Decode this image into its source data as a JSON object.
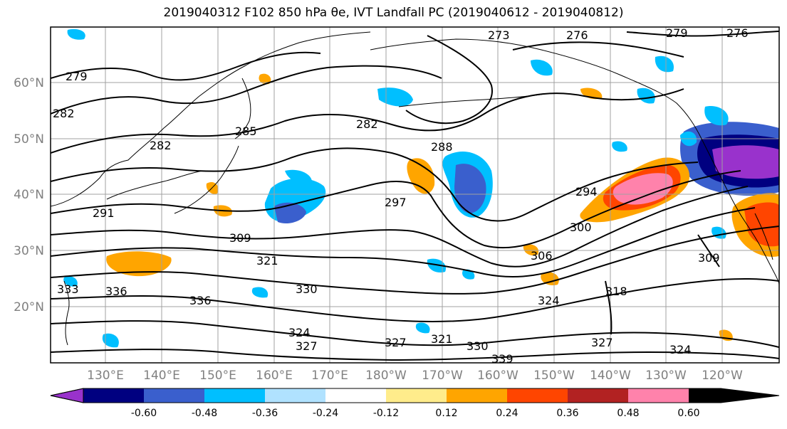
{
  "title": "2019040312 F102 850 hPa θe, IVT Landfall PC (2019040612 - 2019040812)",
  "map": {
    "lon_ticks": [
      "130°E",
      "140°E",
      "150°E",
      "160°E",
      "170°E",
      "180°W",
      "170°W",
      "160°W",
      "150°W",
      "140°W",
      "130°W",
      "120°W"
    ],
    "lat_ticks": [
      "60°N",
      "50°N",
      "40°N",
      "30°N",
      "20°N"
    ],
    "contour_labels": [
      "279",
      "282",
      "288",
      "285",
      "282",
      "282",
      "291",
      "297",
      "294",
      "300",
      "306",
      "309",
      "321",
      "330",
      "336",
      "333",
      "336",
      "318",
      "324",
      "327",
      "324",
      "327",
      "321",
      "327",
      "330",
      "339",
      "324",
      "309",
      "273",
      "276",
      "279",
      "276"
    ]
  },
  "colorbar": {
    "tick_labels": [
      "-0.60",
      "-0.48",
      "-0.36",
      "-0.24",
      "-0.12",
      "0.12",
      "0.24",
      "0.36",
      "0.48",
      "0.60"
    ],
    "colors": [
      "#9932cc",
      "#000080",
      "#3a5fcd",
      "#00bfff",
      "#b0e2ff",
      "#ffffff",
      "#ffec8b",
      "#ffa500",
      "#ff4500",
      "#b22222",
      "#ff82ab"
    ]
  }
}
